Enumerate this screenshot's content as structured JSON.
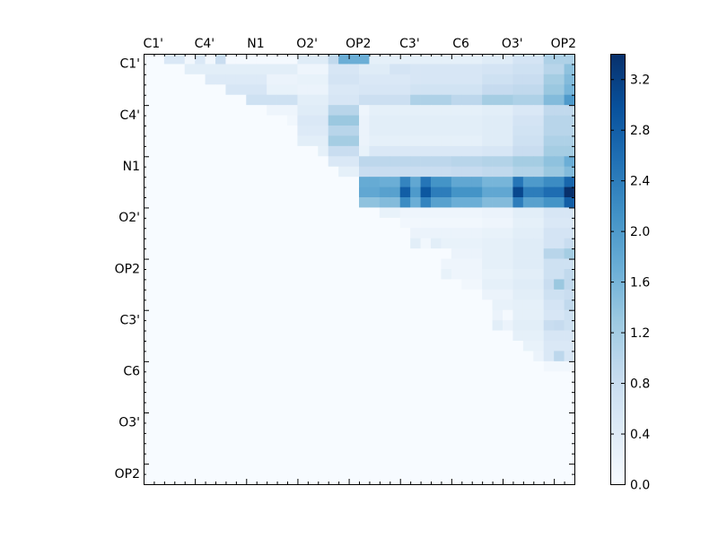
{
  "chart_data": {
    "type": "heatmap",
    "title": "",
    "xlabel": "",
    "ylabel": "",
    "x_tick_labels": [
      "C1'",
      "C4'",
      "N1",
      "O2'",
      "OP2",
      "C3'",
      "C6",
      "O3'",
      "OP2"
    ],
    "y_tick_labels": [
      "C1'",
      "C4'",
      "N1",
      "O2'",
      "OP2",
      "C3'",
      "C6",
      "O3'",
      "OP2"
    ],
    "x_tick_position": "top",
    "n_rows": 42,
    "n_cols": 42,
    "colormap": [
      "#f7fbff",
      "#deebf7",
      "#c6dbef",
      "#9ecae1",
      "#6baed6",
      "#4292c6",
      "#2171b5",
      "#08519c",
      "#08306b"
    ],
    "colorbar": {
      "min": 0.0,
      "max": 3.4,
      "ticks": [
        "0.0",
        "0.4",
        "0.8",
        "1.2",
        "1.6",
        "2.0",
        "2.4",
        "2.8",
        "3.2"
      ]
    },
    "upper_triangular": true,
    "row_profiles": [
      {
        "row": 0,
        "min_col": 2,
        "segs": [
          [
            2,
            4,
            0.5
          ],
          [
            4,
            5,
            0.1
          ],
          [
            5,
            6,
            0.5
          ],
          [
            6,
            7,
            0.1
          ],
          [
            7,
            8,
            0.8
          ],
          [
            8,
            15,
            0.05
          ],
          [
            15,
            18,
            0.4
          ],
          [
            18,
            19,
            0.9
          ],
          [
            19,
            22,
            1.7
          ],
          [
            22,
            26,
            0.3
          ],
          [
            26,
            33,
            0.3
          ],
          [
            33,
            36,
            0.4
          ],
          [
            36,
            39,
            0.6
          ],
          [
            39,
            42,
            1.1
          ]
        ]
      },
      {
        "row": 1,
        "min_col": 4,
        "segs": [
          [
            4,
            15,
            0.35
          ],
          [
            15,
            18,
            0.15
          ],
          [
            18,
            21,
            0.55
          ],
          [
            21,
            24,
            0.4
          ],
          [
            24,
            26,
            0.6
          ],
          [
            26,
            33,
            0.55
          ],
          [
            33,
            36,
            0.6
          ],
          [
            36,
            39,
            0.7
          ],
          [
            39,
            41,
            1.0
          ],
          [
            41,
            42,
            1.4
          ]
        ]
      },
      {
        "row": 2,
        "min_col": 6,
        "segs": [
          [
            6,
            12,
            0.45
          ],
          [
            12,
            15,
            0.2
          ],
          [
            15,
            18,
            0.25
          ],
          [
            18,
            21,
            0.6
          ],
          [
            21,
            26,
            0.5
          ],
          [
            26,
            33,
            0.55
          ],
          [
            33,
            36,
            0.7
          ],
          [
            36,
            39,
            0.8
          ],
          [
            39,
            41,
            1.2
          ],
          [
            41,
            42,
            1.5
          ]
        ]
      },
      {
        "row": 3,
        "min_col": 8,
        "segs": [
          [
            8,
            12,
            0.55
          ],
          [
            12,
            15,
            0.25
          ],
          [
            15,
            18,
            0.2
          ],
          [
            18,
            21,
            0.5
          ],
          [
            21,
            26,
            0.55
          ],
          [
            26,
            33,
            0.65
          ],
          [
            33,
            36,
            0.85
          ],
          [
            36,
            39,
            0.9
          ],
          [
            39,
            41,
            1.3
          ],
          [
            41,
            42,
            1.6
          ]
        ]
      },
      {
        "row": 4,
        "min_col": 10,
        "segs": [
          [
            10,
            15,
            0.7
          ],
          [
            15,
            18,
            0.35
          ],
          [
            18,
            21,
            0.55
          ],
          [
            21,
            26,
            0.75
          ],
          [
            26,
            30,
            1.1
          ],
          [
            30,
            33,
            0.95
          ],
          [
            33,
            36,
            1.2
          ],
          [
            36,
            39,
            1.1
          ],
          [
            39,
            41,
            1.5
          ],
          [
            41,
            42,
            2.0
          ]
        ]
      },
      {
        "row": 5,
        "min_col": 12,
        "segs": [
          [
            12,
            15,
            0.15
          ],
          [
            15,
            18,
            0.4
          ],
          [
            18,
            21,
            1.0
          ],
          [
            21,
            22,
            0.15
          ],
          [
            22,
            33,
            0.3
          ],
          [
            33,
            36,
            0.35
          ],
          [
            36,
            39,
            0.5
          ],
          [
            39,
            42,
            0.9
          ]
        ]
      },
      {
        "row": 6,
        "min_col": 14,
        "segs": [
          [
            14,
            15,
            0.1
          ],
          [
            15,
            18,
            0.5
          ],
          [
            18,
            21,
            1.3
          ],
          [
            21,
            22,
            0.2
          ],
          [
            22,
            33,
            0.35
          ],
          [
            33,
            36,
            0.4
          ],
          [
            36,
            39,
            0.6
          ],
          [
            39,
            42,
            1.0
          ]
        ]
      },
      {
        "row": 7,
        "min_col": 15,
        "segs": [
          [
            15,
            18,
            0.45
          ],
          [
            18,
            21,
            1.0
          ],
          [
            21,
            22,
            0.2
          ],
          [
            22,
            33,
            0.35
          ],
          [
            33,
            36,
            0.4
          ],
          [
            36,
            39,
            0.65
          ],
          [
            39,
            42,
            1.0
          ]
        ]
      },
      {
        "row": 8,
        "min_col": 15,
        "segs": [
          [
            15,
            18,
            0.35
          ],
          [
            18,
            21,
            1.2
          ],
          [
            21,
            22,
            0.2
          ],
          [
            22,
            33,
            0.3
          ],
          [
            33,
            36,
            0.4
          ],
          [
            36,
            39,
            0.7
          ],
          [
            39,
            42,
            1.1
          ]
        ]
      },
      {
        "row": 9,
        "min_col": 17,
        "segs": [
          [
            17,
            18,
            0.3
          ],
          [
            18,
            21,
            0.8
          ],
          [
            21,
            22,
            0.25
          ],
          [
            22,
            33,
            0.5
          ],
          [
            33,
            36,
            0.55
          ],
          [
            36,
            39,
            0.8
          ],
          [
            39,
            42,
            1.2
          ]
        ]
      },
      {
        "row": 10,
        "min_col": 18,
        "segs": [
          [
            18,
            21,
            0.5
          ],
          [
            21,
            30,
            0.95
          ],
          [
            30,
            33,
            1.0
          ],
          [
            33,
            36,
            1.05
          ],
          [
            36,
            39,
            1.2
          ],
          [
            39,
            41,
            1.4
          ],
          [
            41,
            42,
            1.7
          ]
        ]
      },
      {
        "row": 11,
        "min_col": 19,
        "segs": [
          [
            19,
            21,
            0.3
          ],
          [
            21,
            30,
            0.8
          ],
          [
            30,
            33,
            0.85
          ],
          [
            33,
            36,
            0.9
          ],
          [
            36,
            39,
            1.05
          ],
          [
            39,
            41,
            1.3
          ],
          [
            41,
            42,
            1.5
          ]
        ]
      },
      {
        "row": 12,
        "min_col": 21,
        "segs": [
          [
            21,
            23,
            1.75
          ],
          [
            23,
            25,
            1.7
          ],
          [
            25,
            26,
            2.3
          ],
          [
            26,
            27,
            1.8
          ],
          [
            27,
            28,
            2.5
          ],
          [
            28,
            30,
            2.1
          ],
          [
            30,
            33,
            1.8
          ],
          [
            33,
            36,
            1.6
          ],
          [
            36,
            37,
            2.5
          ],
          [
            37,
            39,
            2.0
          ],
          [
            39,
            41,
            2.2
          ],
          [
            41,
            42,
            2.7
          ]
        ]
      },
      {
        "row": 13,
        "min_col": 21,
        "segs": [
          [
            21,
            23,
            1.8
          ],
          [
            23,
            25,
            1.9
          ],
          [
            25,
            26,
            2.8
          ],
          [
            26,
            27,
            2.0
          ],
          [
            27,
            28,
            2.9
          ],
          [
            28,
            30,
            2.4
          ],
          [
            30,
            33,
            2.1
          ],
          [
            33,
            36,
            1.8
          ],
          [
            36,
            37,
            3.1
          ],
          [
            37,
            39,
            2.4
          ],
          [
            39,
            41,
            2.6
          ],
          [
            41,
            42,
            3.4
          ]
        ]
      },
      {
        "row": 14,
        "min_col": 21,
        "segs": [
          [
            21,
            23,
            1.4
          ],
          [
            23,
            25,
            1.5
          ],
          [
            25,
            26,
            2.2
          ],
          [
            26,
            27,
            1.7
          ],
          [
            27,
            28,
            2.3
          ],
          [
            28,
            30,
            1.9
          ],
          [
            30,
            33,
            1.7
          ],
          [
            33,
            36,
            1.5
          ],
          [
            36,
            37,
            2.4
          ],
          [
            37,
            39,
            1.9
          ],
          [
            39,
            41,
            2.1
          ],
          [
            41,
            42,
            2.8
          ]
        ]
      },
      {
        "row": 15,
        "min_col": 23,
        "segs": [
          [
            23,
            25,
            0.25
          ],
          [
            25,
            33,
            0.15
          ],
          [
            33,
            36,
            0.2
          ],
          [
            36,
            39,
            0.35
          ],
          [
            39,
            42,
            0.55
          ]
        ]
      },
      {
        "row": 16,
        "min_col": 25,
        "segs": [
          [
            25,
            33,
            0.1
          ],
          [
            33,
            36,
            0.15
          ],
          [
            36,
            39,
            0.3
          ],
          [
            39,
            42,
            0.5
          ]
        ]
      },
      {
        "row": 17,
        "min_col": 26,
        "segs": [
          [
            26,
            33,
            0.2
          ],
          [
            33,
            36,
            0.25
          ],
          [
            36,
            39,
            0.35
          ],
          [
            39,
            42,
            0.6
          ]
        ]
      },
      {
        "row": 18,
        "min_col": 26,
        "segs": [
          [
            26,
            27,
            0.35
          ],
          [
            27,
            28,
            0.1
          ],
          [
            28,
            29,
            0.35
          ],
          [
            29,
            33,
            0.25
          ],
          [
            33,
            36,
            0.3
          ],
          [
            36,
            39,
            0.4
          ],
          [
            39,
            41,
            0.6
          ],
          [
            41,
            42,
            0.8
          ]
        ]
      },
      {
        "row": 19,
        "min_col": 30,
        "segs": [
          [
            30,
            33,
            0.2
          ],
          [
            33,
            36,
            0.3
          ],
          [
            36,
            39,
            0.4
          ],
          [
            39,
            41,
            1.0
          ],
          [
            41,
            42,
            1.2
          ]
        ]
      },
      {
        "row": 20,
        "min_col": 29,
        "segs": [
          [
            29,
            33,
            0.15
          ],
          [
            33,
            36,
            0.3
          ],
          [
            36,
            39,
            0.4
          ],
          [
            39,
            42,
            0.7
          ]
        ]
      },
      {
        "row": 21,
        "min_col": 29,
        "segs": [
          [
            29,
            30,
            0.25
          ],
          [
            30,
            33,
            0.15
          ],
          [
            33,
            36,
            0.25
          ],
          [
            36,
            39,
            0.35
          ],
          [
            39,
            41,
            0.7
          ],
          [
            41,
            42,
            0.9
          ]
        ]
      },
      {
        "row": 22,
        "min_col": 31,
        "segs": [
          [
            31,
            33,
            0.1
          ],
          [
            33,
            36,
            0.3
          ],
          [
            36,
            39,
            0.4
          ],
          [
            39,
            40,
            0.8
          ],
          [
            40,
            41,
            1.3
          ],
          [
            41,
            42,
            0.9
          ]
        ]
      },
      {
        "row": 23,
        "min_col": 33,
        "segs": [
          [
            33,
            36,
            0.2
          ],
          [
            36,
            39,
            0.35
          ],
          [
            39,
            41,
            0.7
          ],
          [
            41,
            42,
            0.8
          ]
        ]
      },
      {
        "row": 24,
        "min_col": 34,
        "segs": [
          [
            34,
            36,
            0.25
          ],
          [
            36,
            39,
            0.3
          ],
          [
            39,
            41,
            0.6
          ],
          [
            41,
            42,
            0.9
          ]
        ]
      },
      {
        "row": 25,
        "min_col": 34,
        "segs": [
          [
            34,
            35,
            0.2
          ],
          [
            35,
            36,
            0.05
          ],
          [
            36,
            39,
            0.3
          ],
          [
            39,
            41,
            0.55
          ],
          [
            41,
            42,
            0.7
          ]
        ]
      },
      {
        "row": 26,
        "min_col": 34,
        "segs": [
          [
            34,
            35,
            0.35
          ],
          [
            35,
            36,
            0.2
          ],
          [
            36,
            39,
            0.35
          ],
          [
            39,
            40,
            0.8
          ],
          [
            40,
            41,
            0.85
          ],
          [
            41,
            42,
            0.7
          ]
        ]
      },
      {
        "row": 27,
        "min_col": 36,
        "segs": [
          [
            36,
            39,
            0.3
          ],
          [
            39,
            42,
            0.55
          ]
        ]
      },
      {
        "row": 28,
        "min_col": 37,
        "segs": [
          [
            37,
            39,
            0.25
          ],
          [
            39,
            42,
            0.5
          ]
        ]
      },
      {
        "row": 29,
        "min_col": 38,
        "segs": [
          [
            38,
            39,
            0.2
          ],
          [
            39,
            40,
            0.5
          ],
          [
            40,
            41,
            0.95
          ],
          [
            41,
            42,
            0.55
          ]
        ]
      },
      {
        "row": 30,
        "min_col": 39,
        "segs": [
          [
            39,
            42,
            0.1
          ]
        ]
      }
    ]
  }
}
